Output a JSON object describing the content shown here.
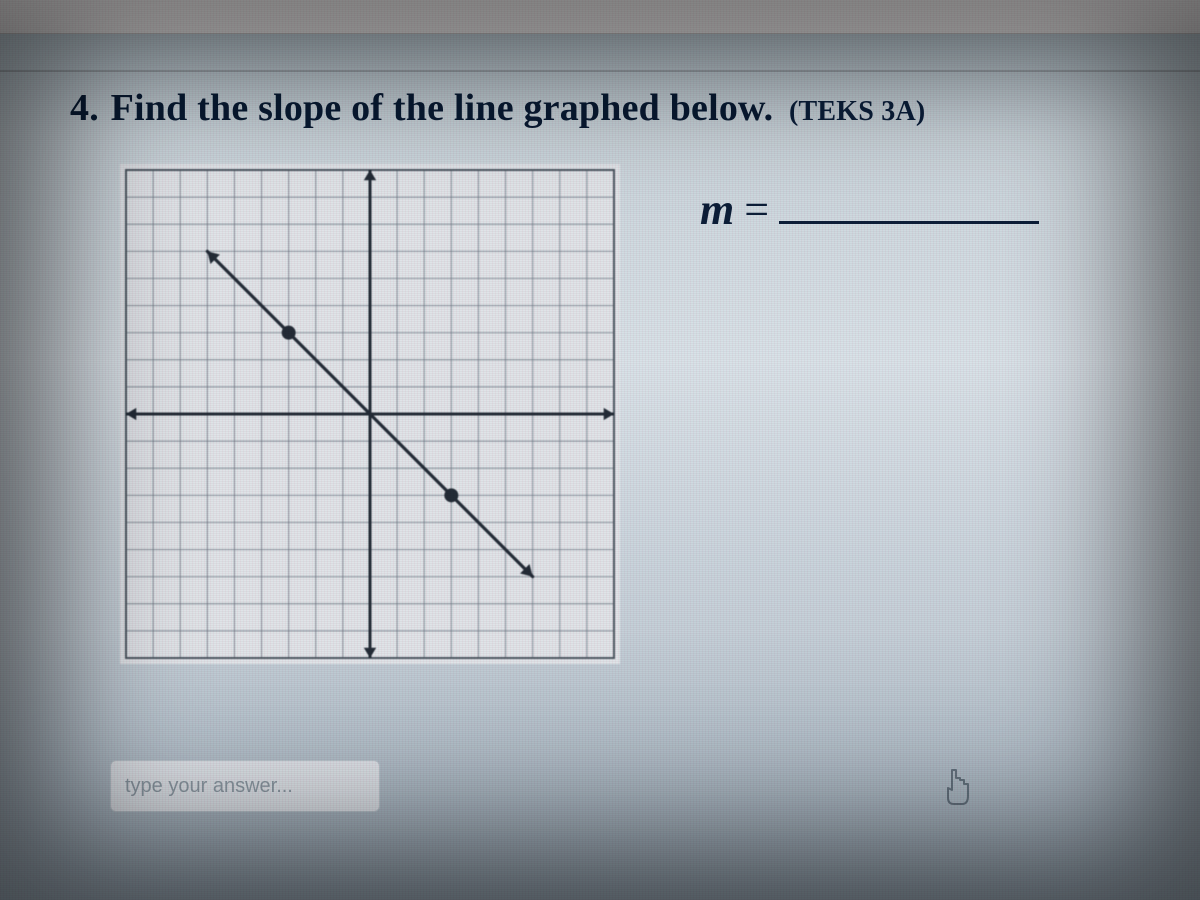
{
  "question": {
    "number": "4.",
    "prompt": "Find the slope of the line graphed below.",
    "standard_tag": "(TEKS 3A)"
  },
  "answer_prompt": {
    "variable": "m",
    "equals": "="
  },
  "input": {
    "placeholder": "type your answer...",
    "value": ""
  },
  "graph": {
    "type": "coordinate-plane-line",
    "grid": {
      "x_min": -9,
      "x_max": 9,
      "y_min": -9,
      "y_max": 9,
      "major_step": 1,
      "grid_color": "#6b7785",
      "axis_color": "#1b2430",
      "axis_width": 3,
      "grid_width": 1.2,
      "background_color": "#e7edf1",
      "outer_border_color": "#4a5560"
    },
    "line": {
      "points": [
        [
          -3,
          3
        ],
        [
          3,
          -3
        ]
      ],
      "extend_from": [
        -6,
        6
      ],
      "extend_to": [
        6,
        -6
      ],
      "color": "#1b2430",
      "width": 3.2,
      "arrowheads": true
    },
    "marked_points": {
      "coords": [
        [
          -3,
          3
        ],
        [
          3,
          -3
        ]
      ],
      "radius": 7,
      "color": "#1b2430"
    },
    "implied_slope": -1
  },
  "colors": {
    "page_text": "#081a33",
    "input_border": "#b8c4cc",
    "input_placeholder": "#8a98a2"
  }
}
